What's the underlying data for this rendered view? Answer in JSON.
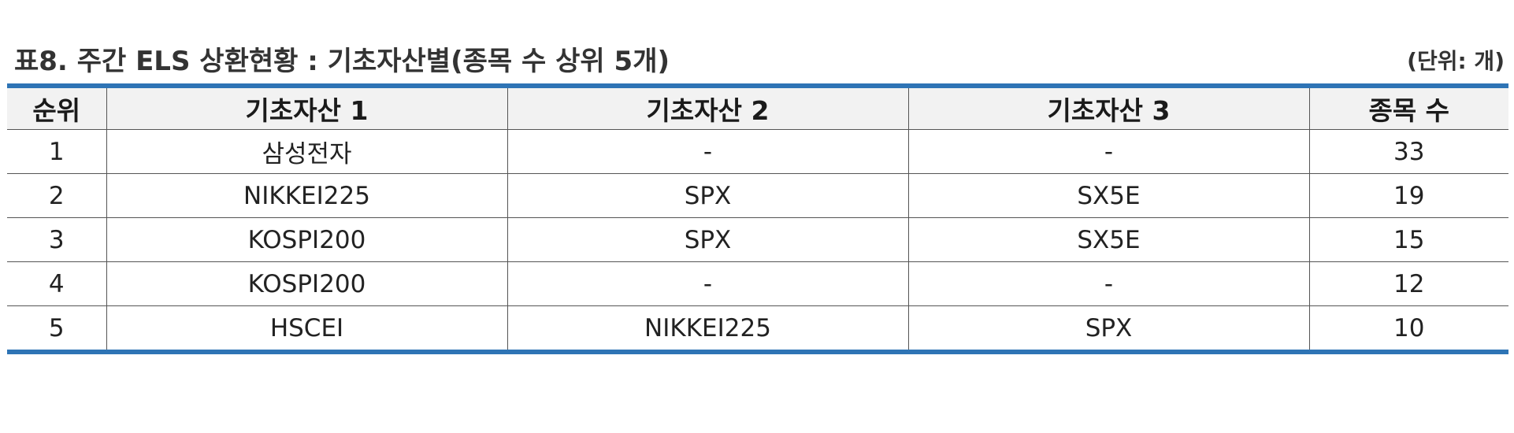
{
  "header": {
    "title": "표8. 주간 ELS 상환현황 : 기초자산별(종목 수 상위 5개)",
    "unit": "(단위: 개)"
  },
  "table": {
    "columns": [
      "순위",
      "기초자산 1",
      "기초자산 2",
      "기초자산 3",
      "종목 수"
    ],
    "rows": [
      [
        "1",
        "삼성전자",
        "-",
        "-",
        "33"
      ],
      [
        "2",
        "NIKKEI225",
        "SPX",
        "SX5E",
        "19"
      ],
      [
        "3",
        "KOSPI200",
        "SPX",
        "SX5E",
        "15"
      ],
      [
        "4",
        "KOSPI200",
        "-",
        "-",
        "12"
      ],
      [
        "5",
        "HSCEI",
        "NIKKEI225",
        "SPX",
        "10"
      ]
    ]
  },
  "colors": {
    "accent_border": "#2e74b5",
    "header_bg": "#f2f2f2"
  }
}
